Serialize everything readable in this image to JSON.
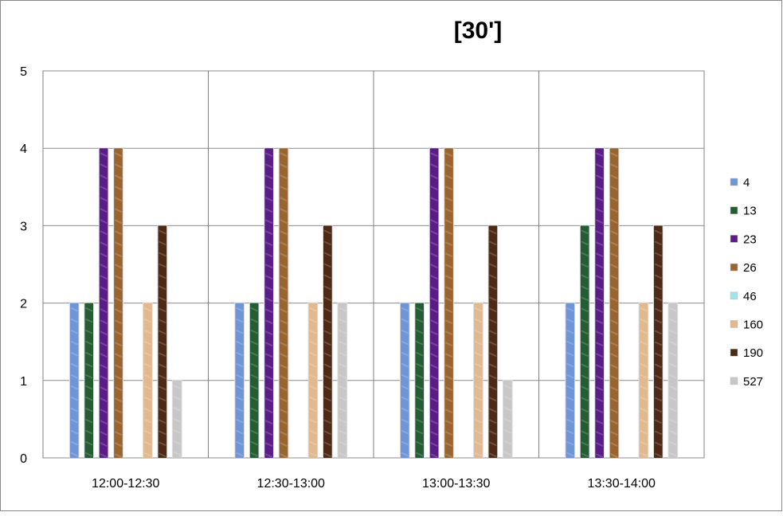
{
  "chart_data": {
    "type": "bar",
    "title": "[30']",
    "xlabel": "",
    "ylabel": "",
    "ylim": [
      0,
      5
    ],
    "yticks": [
      0,
      1,
      2,
      3,
      4,
      5
    ],
    "grid": true,
    "legend_position": "right",
    "categories": [
      "12:00-12:30",
      "12:30-13:00",
      "13:00-13:30",
      "13:30-14:00"
    ],
    "series": [
      {
        "name": "4",
        "values": [
          2,
          2,
          2,
          2
        ],
        "color": "#6f95d6"
      },
      {
        "name": "13",
        "values": [
          2,
          2,
          2,
          3
        ],
        "color": "#245c34"
      },
      {
        "name": "23",
        "values": [
          4,
          4,
          4,
          4
        ],
        "color": "#5a1c86"
      },
      {
        "name": "26",
        "values": [
          4,
          4,
          4,
          4
        ],
        "color": "#9a6430"
      },
      {
        "name": "46",
        "values": [
          0,
          0,
          0,
          0
        ],
        "color": "#9fe3ee"
      },
      {
        "name": "160",
        "values": [
          2,
          2,
          2,
          2
        ],
        "color": "#e2b98e"
      },
      {
        "name": "190",
        "values": [
          3,
          3,
          3,
          3
        ],
        "color": "#4c2a16"
      },
      {
        "name": "527",
        "values": [
          1,
          2,
          1,
          2
        ],
        "color": "#c7c7c7"
      }
    ]
  }
}
